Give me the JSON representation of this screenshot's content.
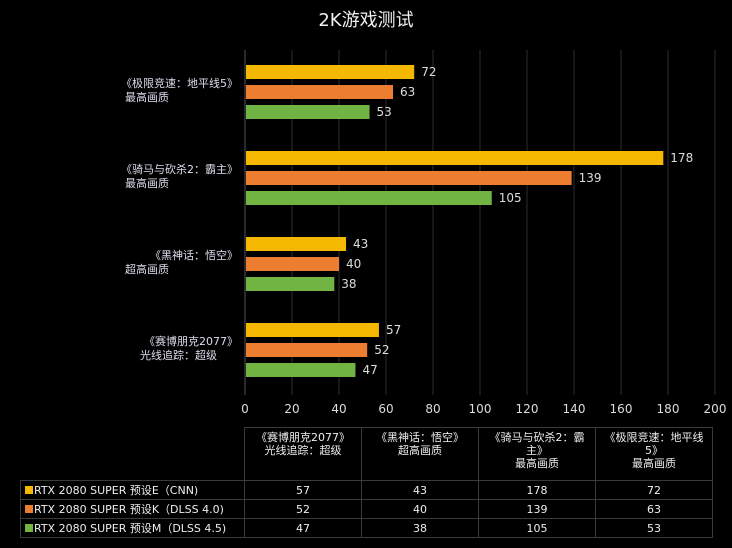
{
  "chart_data": {
    "type": "bar",
    "orientation": "horizontal",
    "title": "2K游戏测试",
    "categories": [
      {
        "line1": "《极限竞速：地平线5》",
        "line2": "最高画质",
        "table_header": [
          "《极限竞速：地平线",
          "5》",
          "最高画质"
        ]
      },
      {
        "line1": "《骑马与砍杀2：霸主》",
        "line2": "最高画质",
        "table_header": [
          "《骑马与砍杀2：霸",
          "主》",
          "最高画质"
        ]
      },
      {
        "line1": "《黑神话：悟空》",
        "line2": "超高画质",
        "table_header": [
          "《黑神话：悟空》",
          "超高画质",
          ""
        ]
      },
      {
        "line1": "《赛博朋克2077》",
        "line2": "光线追踪：超级",
        "table_header": [
          "《赛博朋克2077》",
          "光线追踪：超级",
          ""
        ]
      }
    ],
    "series": [
      {
        "name": "RTX 2080 SUPER 预设E（CNN)",
        "color": "#f5b800",
        "values": [
          72,
          178,
          43,
          57
        ]
      },
      {
        "name": "RTX 2080 SUPER 预设K（DLSS 4.0)",
        "color": "#ed7d31",
        "values": [
          63,
          139,
          40,
          52
        ]
      },
      {
        "name": "RTX 2080 SUPER 预设M（DLSS 4.5)",
        "color": "#71b443",
        "values": [
          53,
          105,
          38,
          47
        ]
      }
    ],
    "xlim": [
      0,
      200
    ],
    "xticks": [
      "0",
      "20",
      "40",
      "60",
      "80",
      "100",
      "120",
      "140",
      "160",
      "180",
      "200"
    ],
    "grid": true,
    "legend": "data-table-bottom"
  }
}
